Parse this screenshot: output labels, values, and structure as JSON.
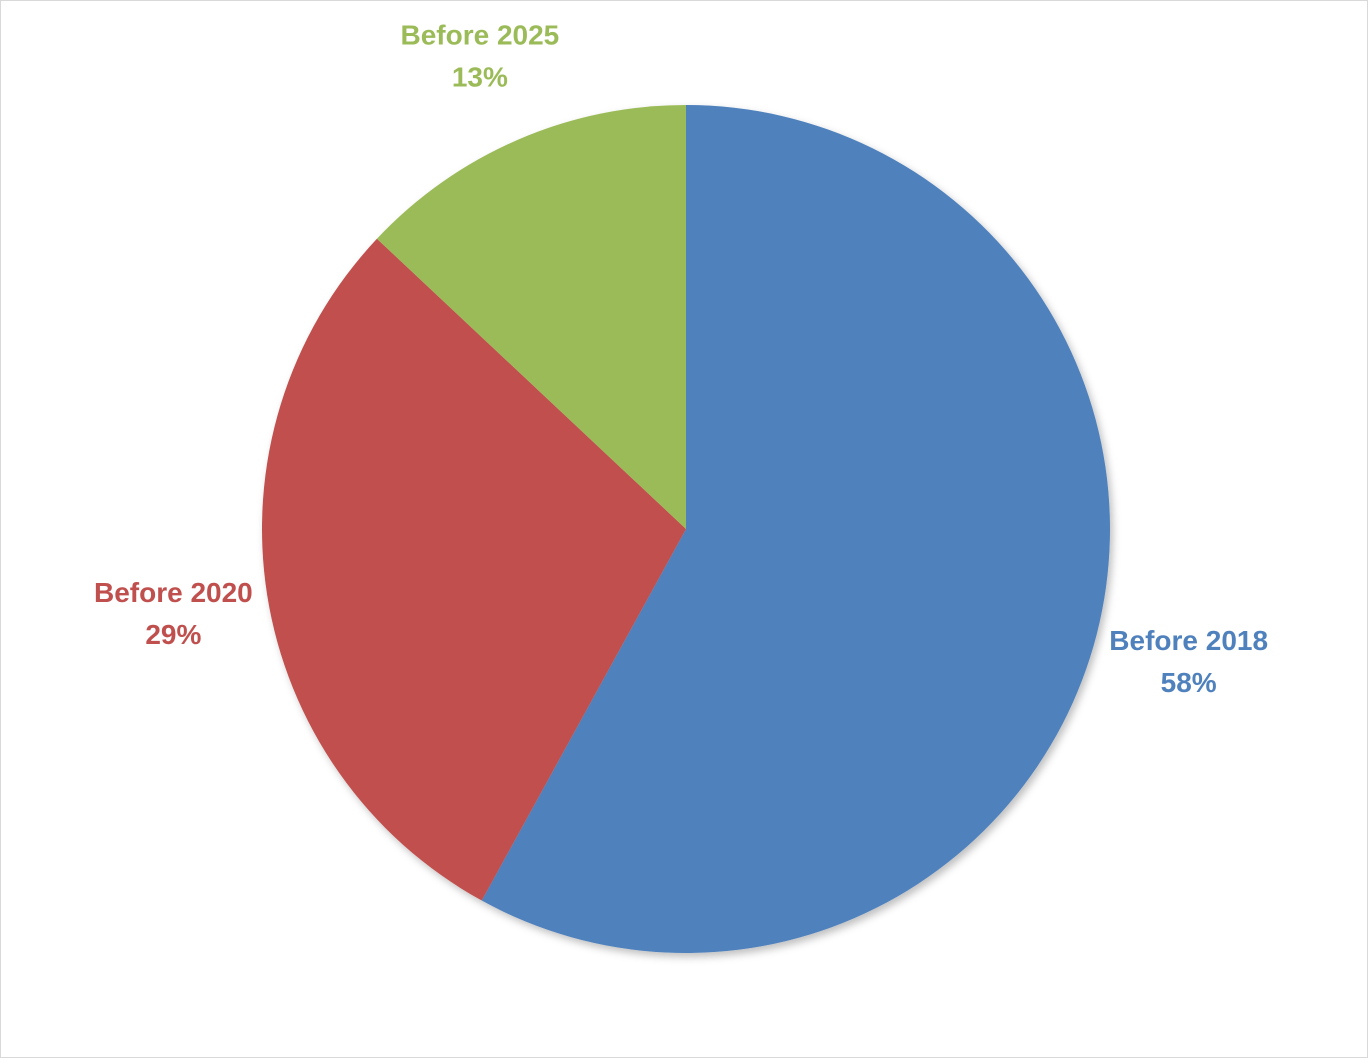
{
  "chart_data": {
    "type": "pie",
    "title": "",
    "categories": [
      "Before 2018",
      "Before 2020",
      "Before 2025"
    ],
    "values": [
      58,
      29,
      13
    ],
    "percent_labels": [
      "58%",
      "29%",
      "13%"
    ],
    "colors": [
      "#4f81bd",
      "#c0504d",
      "#9bbb59"
    ],
    "start": "12 o'clock",
    "direction": "clockwise",
    "legend": "none",
    "data_labels": "outside"
  }
}
